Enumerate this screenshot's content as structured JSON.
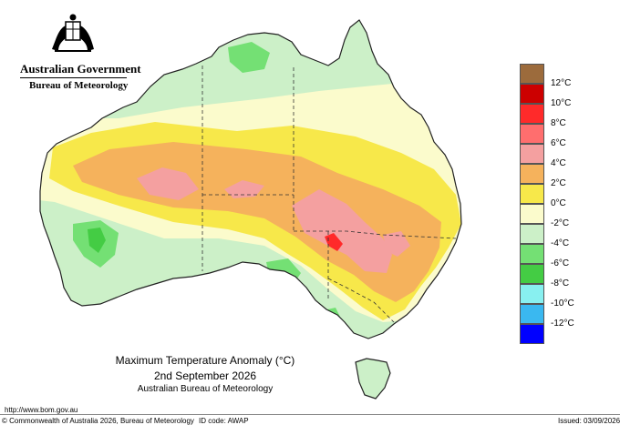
{
  "header": {
    "government": "Australian Government",
    "bureau": "Bureau of Meteorology"
  },
  "map": {
    "title": "Maximum Temperature Anomaly (°C)",
    "date": "2nd September 2026",
    "organisation": "Australian Bureau of Meteorology"
  },
  "legend": {
    "items": [
      {
        "label": "",
        "color": "#9c6b3c"
      },
      {
        "label": "12°C",
        "color": "#cc0000"
      },
      {
        "label": "10°C",
        "color": "#ff2a2a"
      },
      {
        "label": "8°C",
        "color": "#ff6e6e"
      },
      {
        "label": "6°C",
        "color": "#f4a0a0"
      },
      {
        "label": "4°C",
        "color": "#f5b25c"
      },
      {
        "label": "2°C",
        "color": "#f7e84a"
      },
      {
        "label": "0°C",
        "color": "#fbfbcc"
      },
      {
        "label": "-2°C",
        "color": "#ccf0c8"
      },
      {
        "label": "-4°C",
        "color": "#74e074"
      },
      {
        "label": "-6°C",
        "color": "#44cc44"
      },
      {
        "label": "-8°C",
        "color": "#88f0f0"
      },
      {
        "label": "-10°C",
        "color": "#3ab8f0"
      },
      {
        "label": "-12°C",
        "color": "#7070f0"
      },
      {
        "label": "",
        "color": "#0000ff"
      }
    ]
  },
  "footer": {
    "url": "http://www.bom.gov.au",
    "copyright": "© Commonwealth of Australia 2026, Bureau of Meteorology",
    "id_code": "ID code: AWAP",
    "issued": "Issued: 03/09/2026"
  }
}
